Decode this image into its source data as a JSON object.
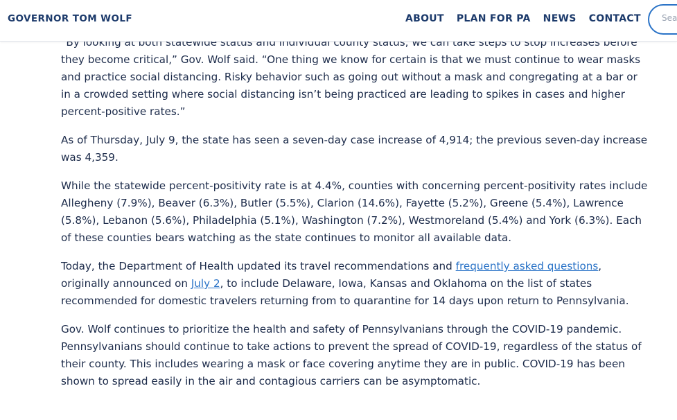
{
  "header": {
    "brand": "GOVERNOR TOM WOLF",
    "nav": [
      {
        "label": "ABOUT"
      },
      {
        "label": "PLAN FOR PA"
      },
      {
        "label": "NEWS"
      },
      {
        "label": "CONTACT"
      }
    ],
    "search_placeholder": "Search"
  },
  "article": {
    "p1": "“By looking at both statewide status and individual county status, we can take steps to stop increases before they become critical,” Gov. Wolf said. “One thing we know for certain is that we must continue to wear masks and practice social distancing. Risky behavior such as going out without a mask and congregating at a bar or in a crowded setting where social distancing isn’t being practiced are leading to spikes in cases and higher percent-positive rates.”",
    "p2": "As of Thursday, July 9, the state has seen a seven-day case increase of 4,914; the previous seven-day increase was 4,359.",
    "p3": "While the statewide percent-positivity rate is at 4.4%, counties with concerning percent-positivity rates include Allegheny (7.9%), Beaver (6.3%), Butler (5.5%), Clarion (14.6%), Fayette (5.2%), Greene (5.4%), Lawrence (5.8%), Lebanon (5.6%), Philadelphia (5.1%), Washington (7.2%), Westmoreland (5.4%) and York (6.3%). Each of these counties bears watching as the state continues to monitor all available data.",
    "p4_part1": "Today, the Department of Health updated its travel recommendations and ",
    "p4_link1": "frequently asked questions",
    "p4_part2": ", originally announced on ",
    "p4_link2": "July 2",
    "p4_part3": ", to include Delaware, Iowa, Kansas and Oklahoma on the list of states recommended for domestic travelers returning from to quarantine for 14 days upon return to Pennsylvania.",
    "p5": "Gov. Wolf continues to prioritize the health and safety of Pennsylvanians through the COVID-19 pandemic. Pennsylvanians should continue to take actions to prevent the spread of COVID-19, regardless of the status of their county. This includes wearing a mask or face covering anytime they are in public. COVID-19 has been shown to spread easily in the air and contagious carriers can be asymptomatic."
  }
}
